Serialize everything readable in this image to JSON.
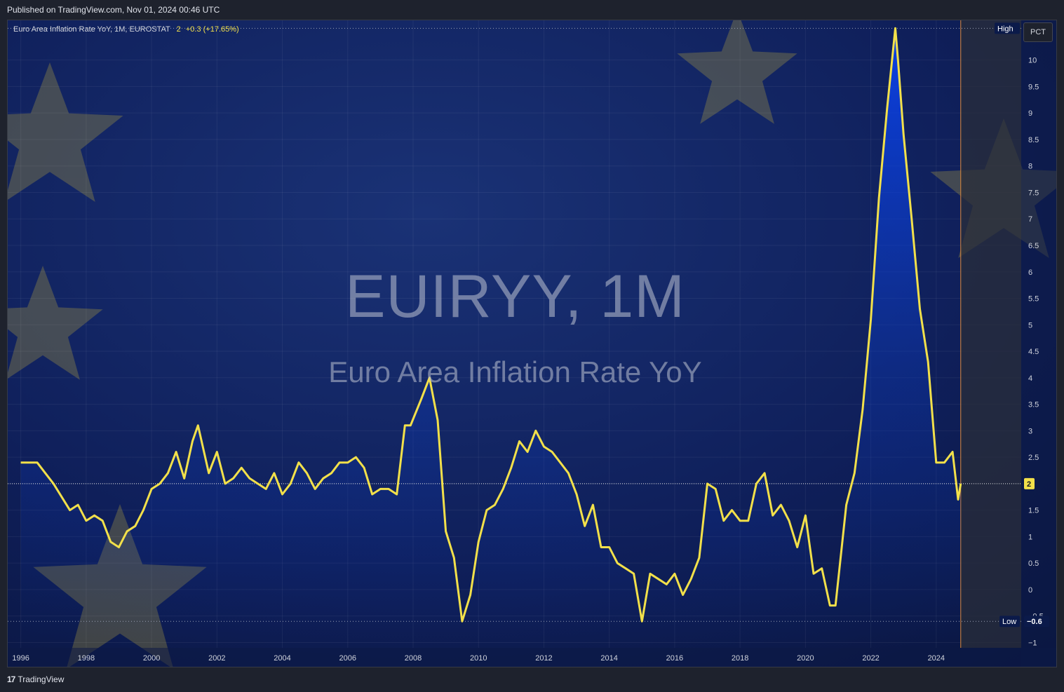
{
  "header": {
    "published": "Published on TradingView.com, Nov 01, 2024 00:46 UTC"
  },
  "legend": {
    "name": "Euro Area Inflation Rate YoY, 1M, EUROSTAT",
    "value": "2",
    "change": "+0.3 (+17.65%)"
  },
  "scale_button": "PCT",
  "watermark": {
    "symbol": "EUIRYY, 1M",
    "description": "Euro Area Inflation Rate YoY"
  },
  "footer": {
    "brand": "TradingView",
    "logo_icon": "tradingview-logo-icon"
  },
  "colors": {
    "line": "#f2e04a",
    "background": "#0c1a4d",
    "fill": "#0a3cc8",
    "stars": "#c9b43a"
  },
  "chart_data": {
    "type": "line",
    "title": "Euro Area Inflation Rate YoY, 1M, EUROSTAT",
    "xlabel": "",
    "ylabel": "",
    "xlim": [
      1995.6,
      2026.6
    ],
    "ylim": [
      -1.1,
      10.75
    ],
    "x_ticks": [
      1996,
      1998,
      2000,
      2002,
      2004,
      2006,
      2008,
      2010,
      2012,
      2014,
      2016,
      2018,
      2020,
      2022,
      2024
    ],
    "x_tick_labels": [
      "1996",
      "1998",
      "2000",
      "2002",
      "2004",
      "2006",
      "2008",
      "2010",
      "2012",
      "2014",
      "2016",
      "2018",
      "2020",
      "2022",
      "2024"
    ],
    "y_ticks": [
      -1,
      -0.5,
      0,
      0.5,
      1,
      1.5,
      2,
      2.5,
      3,
      3.5,
      4,
      4.5,
      5,
      5.5,
      6,
      6.5,
      7,
      7.5,
      8,
      8.5,
      9,
      9.5,
      10
    ],
    "y_tick_labels": [
      "−1",
      "−0.5",
      "0",
      "0.5",
      "1",
      "1.5",
      "2",
      "2.5",
      "3",
      "3.5",
      "4",
      "4.5",
      "5",
      "5.5",
      "6",
      "6.5",
      "7",
      "7.5",
      "8",
      "8.5",
      "9",
      "9.5",
      "10"
    ],
    "grid": true,
    "high": {
      "label": "High",
      "value": 10.6
    },
    "low": {
      "label": "Low",
      "value": -0.6,
      "display": "−0.6"
    },
    "last": {
      "value": 2,
      "display": "2"
    },
    "last_x": 2024.75,
    "series": [
      {
        "x": [
          1996.0,
          1996.5,
          1996.75,
          1997.0,
          1997.5,
          1997.75,
          1998.0,
          1998.25,
          1998.5,
          1998.75,
          1999.0,
          1999.25,
          1999.5,
          1999.75,
          2000.0,
          2000.25,
          2000.5,
          2000.75,
          2001.0,
          2001.25,
          2001.42,
          2001.75,
          2002.0,
          2002.25,
          2002.5,
          2002.75,
          2003.0,
          2003.25,
          2003.5,
          2003.75,
          2004.0,
          2004.25,
          2004.5,
          2004.75,
          2005.0,
          2005.25,
          2005.5,
          2005.75,
          2006.0,
          2006.25,
          2006.5,
          2006.75,
          2007.0,
          2007.25,
          2007.5,
          2007.75,
          2007.92,
          2008.25,
          2008.5,
          2008.75,
          2009.0,
          2009.25,
          2009.5,
          2009.75,
          2010.0,
          2010.25,
          2010.5,
          2010.75,
          2011.0,
          2011.25,
          2011.5,
          2011.75,
          2012.0,
          2012.25,
          2012.5,
          2012.75,
          2013.0,
          2013.25,
          2013.5,
          2013.75,
          2014.0,
          2014.25,
          2014.5,
          2014.75,
          2015.0,
          2015.25,
          2015.5,
          2015.75,
          2016.0,
          2016.25,
          2016.5,
          2016.75,
          2017.0,
          2017.25,
          2017.5,
          2017.75,
          2018.0,
          2018.25,
          2018.5,
          2018.75,
          2019.0,
          2019.25,
          2019.5,
          2019.75,
          2020.0,
          2020.25,
          2020.5,
          2020.75,
          2020.92,
          2021.25,
          2021.5,
          2021.75,
          2022.0,
          2022.25,
          2022.5,
          2022.75,
          2022.83,
          2023.0,
          2023.25,
          2023.5,
          2023.75,
          2024.0,
          2024.25,
          2024.5,
          2024.67,
          2024.75
        ],
        "values": [
          2.4,
          2.4,
          2.2,
          2.0,
          1.5,
          1.6,
          1.3,
          1.4,
          1.3,
          0.9,
          0.8,
          1.1,
          1.2,
          1.5,
          1.9,
          2.0,
          2.2,
          2.6,
          2.1,
          2.8,
          3.1,
          2.2,
          2.6,
          2.0,
          2.1,
          2.3,
          2.1,
          2.0,
          1.9,
          2.2,
          1.8,
          2.0,
          2.4,
          2.2,
          1.9,
          2.1,
          2.2,
          2.4,
          2.4,
          2.5,
          2.3,
          1.8,
          1.9,
          1.9,
          1.8,
          3.1,
          3.1,
          3.6,
          4.0,
          3.2,
          1.1,
          0.6,
          -0.6,
          -0.1,
          0.9,
          1.5,
          1.6,
          1.9,
          2.3,
          2.8,
          2.6,
          3.0,
          2.7,
          2.6,
          2.4,
          2.2,
          1.8,
          1.2,
          1.6,
          0.8,
          0.8,
          0.5,
          0.4,
          0.3,
          -0.6,
          0.3,
          0.2,
          0.1,
          0.3,
          -0.1,
          0.2,
          0.6,
          2.0,
          1.9,
          1.3,
          1.5,
          1.3,
          1.3,
          2.0,
          2.2,
          1.4,
          1.6,
          1.3,
          0.8,
          1.4,
          0.3,
          0.4,
          -0.3,
          -0.3,
          1.6,
          2.2,
          3.4,
          5.1,
          7.4,
          9.1,
          10.6,
          10.0,
          8.6,
          7.0,
          5.3,
          4.3,
          2.4,
          2.4,
          2.6,
          1.7,
          2.0
        ]
      }
    ]
  }
}
